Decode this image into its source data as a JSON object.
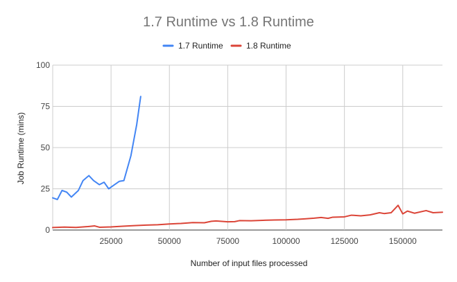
{
  "chart_data": {
    "type": "line",
    "title": "1.7 Runtime vs 1.8 Runtime",
    "xlabel": "Number of input files processed",
    "ylabel": "Job Runtime (mins)",
    "xlim": [
      0,
      167000
    ],
    "ylim": [
      0,
      100
    ],
    "x_ticks": [
      25000,
      50000,
      75000,
      100000,
      125000,
      150000
    ],
    "x_tick_labels": [
      "25000",
      "50000",
      "75000",
      "100000",
      "125000",
      "150000"
    ],
    "y_ticks": [
      0,
      25,
      50,
      75,
      100
    ],
    "y_tick_labels": [
      "0",
      "25",
      "50",
      "75",
      "100"
    ],
    "grid": true,
    "legend_position": "top",
    "series": [
      {
        "name": "1.7 Runtime",
        "color": "#4285f4",
        "points": [
          [
            0,
            19.5
          ],
          [
            2000,
            18.5
          ],
          [
            4000,
            24
          ],
          [
            6000,
            23
          ],
          [
            8000,
            20
          ],
          [
            11000,
            24
          ],
          [
            13000,
            30
          ],
          [
            15500,
            33
          ],
          [
            17500,
            30
          ],
          [
            20000,
            27.5
          ],
          [
            22000,
            29
          ],
          [
            24000,
            25
          ],
          [
            26000,
            27
          ],
          [
            28500,
            29.5
          ],
          [
            30500,
            30
          ],
          [
            33500,
            45
          ],
          [
            36000,
            64
          ],
          [
            37700,
            81
          ]
        ]
      },
      {
        "name": "1.8 Runtime",
        "color": "#db4437",
        "points": [
          [
            0,
            1.5
          ],
          [
            5000,
            1.8
          ],
          [
            10000,
            1.6
          ],
          [
            15000,
            2.1
          ],
          [
            18000,
            2.5
          ],
          [
            20000,
            1.7
          ],
          [
            25000,
            1.9
          ],
          [
            30000,
            2.3
          ],
          [
            35000,
            2.7
          ],
          [
            40000,
            3.0
          ],
          [
            45000,
            3.2
          ],
          [
            50000,
            3.7
          ],
          [
            55000,
            4.0
          ],
          [
            60000,
            4.5
          ],
          [
            65000,
            4.4
          ],
          [
            68000,
            5.3
          ],
          [
            70000,
            5.5
          ],
          [
            75000,
            5.0
          ],
          [
            78000,
            5.1
          ],
          [
            80000,
            5.7
          ],
          [
            85000,
            5.6
          ],
          [
            90000,
            5.9
          ],
          [
            95000,
            6.1
          ],
          [
            100000,
            6.2
          ],
          [
            105000,
            6.5
          ],
          [
            108000,
            6.8
          ],
          [
            112000,
            7.2
          ],
          [
            115000,
            7.6
          ],
          [
            118000,
            7.1
          ],
          [
            120000,
            7.8
          ],
          [
            125000,
            8.0
          ],
          [
            128000,
            9.0
          ],
          [
            132000,
            8.6
          ],
          [
            136000,
            9.2
          ],
          [
            140000,
            10.5
          ],
          [
            142000,
            10.0
          ],
          [
            145000,
            10.5
          ],
          [
            148000,
            15.0
          ],
          [
            150000,
            9.8
          ],
          [
            152000,
            11.5
          ],
          [
            155000,
            10.2
          ],
          [
            160000,
            11.8
          ],
          [
            163000,
            10.5
          ],
          [
            167000,
            10.8
          ]
        ]
      }
    ]
  }
}
